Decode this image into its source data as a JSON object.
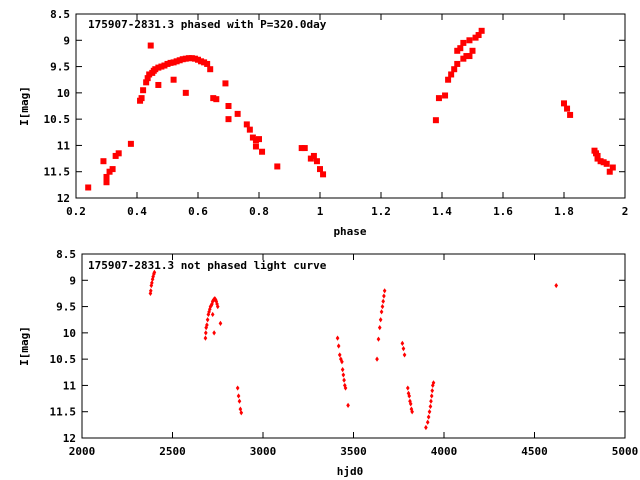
{
  "chart_data": [
    {
      "type": "scatter",
      "title": "175907-2831.3 phased with P=320.0day",
      "xlabel": "phase",
      "ylabel": "I[mag]",
      "xlim": [
        0.2,
        2.0
      ],
      "ylim": [
        8.5,
        12
      ],
      "y_inverted": true,
      "grid": false,
      "marker_color": "#ff0000",
      "marker_shape": "filled-square-cross",
      "x_ticks": [
        0.2,
        0.4,
        0.6,
        0.8,
        1.0,
        1.2,
        1.4,
        1.6,
        1.8,
        2.0
      ],
      "x_tick_labels": [
        "0.2",
        "0.4",
        "0.6",
        "0.8",
        "1",
        "1.2",
        "1.4",
        "1.6",
        "1.8",
        "2"
      ],
      "y_ticks": [
        8.5,
        9,
        9.5,
        10,
        10.5,
        11,
        11.5,
        12
      ],
      "y_tick_labels": [
        "8.5",
        "9",
        "9.5",
        "10",
        "10.5",
        "11",
        "11.5",
        "12"
      ],
      "points": [
        [
          0.24,
          11.8
        ],
        [
          0.29,
          11.3
        ],
        [
          0.3,
          11.6
        ],
        [
          0.3,
          11.7
        ],
        [
          0.31,
          11.5
        ],
        [
          0.32,
          11.45
        ],
        [
          0.33,
          11.2
        ],
        [
          0.34,
          11.15
        ],
        [
          0.38,
          10.97
        ],
        [
          0.41,
          10.15
        ],
        [
          0.415,
          10.1
        ],
        [
          0.42,
          9.95
        ],
        [
          0.43,
          9.8
        ],
        [
          0.435,
          9.72
        ],
        [
          0.44,
          9.65
        ],
        [
          0.445,
          9.1
        ],
        [
          0.45,
          9.62
        ],
        [
          0.455,
          9.58
        ],
        [
          0.46,
          9.55
        ],
        [
          0.47,
          9.52
        ],
        [
          0.47,
          9.85
        ],
        [
          0.48,
          9.5
        ],
        [
          0.49,
          9.48
        ],
        [
          0.5,
          9.45
        ],
        [
          0.51,
          9.43
        ],
        [
          0.52,
          9.42
        ],
        [
          0.52,
          9.75
        ],
        [
          0.53,
          9.4
        ],
        [
          0.54,
          9.38
        ],
        [
          0.55,
          9.36
        ],
        [
          0.56,
          9.35
        ],
        [
          0.56,
          10.0
        ],
        [
          0.57,
          9.34
        ],
        [
          0.58,
          9.34
        ],
        [
          0.59,
          9.35
        ],
        [
          0.6,
          9.37
        ],
        [
          0.61,
          9.4
        ],
        [
          0.62,
          9.42
        ],
        [
          0.63,
          9.45
        ],
        [
          0.64,
          9.55
        ],
        [
          0.65,
          10.1
        ],
        [
          0.66,
          10.12
        ],
        [
          0.69,
          9.82
        ],
        [
          0.7,
          10.25
        ],
        [
          0.7,
          10.5
        ],
        [
          0.73,
          10.4
        ],
        [
          0.76,
          10.6
        ],
        [
          0.77,
          10.7
        ],
        [
          0.78,
          10.85
        ],
        [
          0.79,
          10.9
        ],
        [
          0.79,
          11.02
        ],
        [
          0.8,
          10.88
        ],
        [
          0.81,
          11.12
        ],
        [
          0.86,
          11.4
        ],
        [
          0.94,
          11.05
        ],
        [
          0.95,
          11.05
        ],
        [
          0.97,
          11.25
        ],
        [
          0.98,
          11.2
        ],
        [
          0.99,
          11.3
        ],
        [
          1.0,
          11.45
        ],
        [
          1.01,
          11.55
        ],
        [
          1.38,
          10.52
        ],
        [
          1.39,
          10.1
        ],
        [
          1.41,
          10.05
        ],
        [
          1.42,
          9.75
        ],
        [
          1.43,
          9.65
        ],
        [
          1.44,
          9.55
        ],
        [
          1.45,
          9.45
        ],
        [
          1.45,
          9.2
        ],
        [
          1.46,
          9.15
        ],
        [
          1.47,
          9.35
        ],
        [
          1.47,
          9.05
        ],
        [
          1.48,
          9.3
        ],
        [
          1.49,
          9.3
        ],
        [
          1.49,
          9.0
        ],
        [
          1.5,
          9.2
        ],
        [
          1.51,
          8.95
        ],
        [
          1.52,
          8.9
        ],
        [
          1.53,
          8.82
        ],
        [
          1.8,
          10.2
        ],
        [
          1.81,
          10.3
        ],
        [
          1.82,
          10.42
        ],
        [
          1.9,
          11.1
        ],
        [
          1.905,
          11.15
        ],
        [
          1.91,
          11.2
        ],
        [
          1.91,
          11.25
        ],
        [
          1.92,
          11.3
        ],
        [
          1.93,
          11.32
        ],
        [
          1.94,
          11.35
        ],
        [
          1.95,
          11.5
        ],
        [
          1.96,
          11.42
        ]
      ]
    },
    {
      "type": "scatter",
      "title": "175907-2831.3 not phased light curve",
      "xlabel": "hjd0",
      "ylabel": "I[mag]",
      "xlim": [
        2000,
        5000
      ],
      "ylim": [
        8.5,
        12
      ],
      "y_inverted": true,
      "grid": false,
      "marker_color": "#ff0000",
      "marker_shape": "filled-diamond",
      "x_ticks": [
        2000,
        2500,
        3000,
        3500,
        4000,
        4500,
        5000
      ],
      "x_tick_labels": [
        "2000",
        "2500",
        "3000",
        "3500",
        "4000",
        "4500",
        "5000"
      ],
      "y_ticks": [
        8.5,
        9,
        9.5,
        10,
        10.5,
        11,
        11.5,
        12
      ],
      "y_tick_labels": [
        "8.5",
        "9",
        "9.5",
        "10",
        "10.5",
        "11",
        "11.5",
        "12"
      ],
      "points": [
        [
          2378,
          9.25
        ],
        [
          2380,
          9.2
        ],
        [
          2383,
          9.1
        ],
        [
          2386,
          9.05
        ],
        [
          2390,
          8.98
        ],
        [
          2393,
          8.93
        ],
        [
          2397,
          8.88
        ],
        [
          2400,
          8.85
        ],
        [
          2682,
          10.1
        ],
        [
          2684,
          10.0
        ],
        [
          2686,
          9.9
        ],
        [
          2690,
          9.85
        ],
        [
          2694,
          9.75
        ],
        [
          2698,
          9.65
        ],
        [
          2702,
          9.6
        ],
        [
          2706,
          9.55
        ],
        [
          2710,
          9.5
        ],
        [
          2714,
          9.48
        ],
        [
          2718,
          9.45
        ],
        [
          2722,
          9.4
        ],
        [
          2726,
          9.38
        ],
        [
          2730,
          9.36
        ],
        [
          2734,
          9.35
        ],
        [
          2738,
          9.37
        ],
        [
          2742,
          9.4
        ],
        [
          2746,
          9.45
        ],
        [
          2750,
          9.5
        ],
        [
          2722,
          9.65
        ],
        [
          2730,
          10.0
        ],
        [
          2765,
          9.82
        ],
        [
          2860,
          11.05
        ],
        [
          2865,
          11.2
        ],
        [
          2870,
          11.3
        ],
        [
          2875,
          11.45
        ],
        [
          2880,
          11.52
        ],
        [
          3412,
          10.1
        ],
        [
          3418,
          10.25
        ],
        [
          3424,
          10.42
        ],
        [
          3430,
          10.5
        ],
        [
          3436,
          10.55
        ],
        [
          3440,
          10.7
        ],
        [
          3444,
          10.8
        ],
        [
          3448,
          10.9
        ],
        [
          3452,
          11.0
        ],
        [
          3456,
          11.05
        ],
        [
          3470,
          11.38
        ],
        [
          3630,
          10.5
        ],
        [
          3638,
          10.12
        ],
        [
          3645,
          9.9
        ],
        [
          3650,
          9.75
        ],
        [
          3655,
          9.6
        ],
        [
          3660,
          9.5
        ],
        [
          3664,
          9.4
        ],
        [
          3668,
          9.3
        ],
        [
          3672,
          9.2
        ],
        [
          3770,
          10.2
        ],
        [
          3776,
          10.3
        ],
        [
          3782,
          10.42
        ],
        [
          3800,
          11.05
        ],
        [
          3804,
          11.15
        ],
        [
          3808,
          11.2
        ],
        [
          3812,
          11.3
        ],
        [
          3816,
          11.35
        ],
        [
          3820,
          11.45
        ],
        [
          3824,
          11.5
        ],
        [
          3900,
          11.8
        ],
        [
          3910,
          11.7
        ],
        [
          3915,
          11.6
        ],
        [
          3920,
          11.5
        ],
        [
          3925,
          11.4
        ],
        [
          3928,
          11.3
        ],
        [
          3932,
          11.2
        ],
        [
          3935,
          11.1
        ],
        [
          3938,
          11.0
        ],
        [
          3942,
          10.95
        ],
        [
          4620,
          9.1
        ]
      ]
    }
  ]
}
